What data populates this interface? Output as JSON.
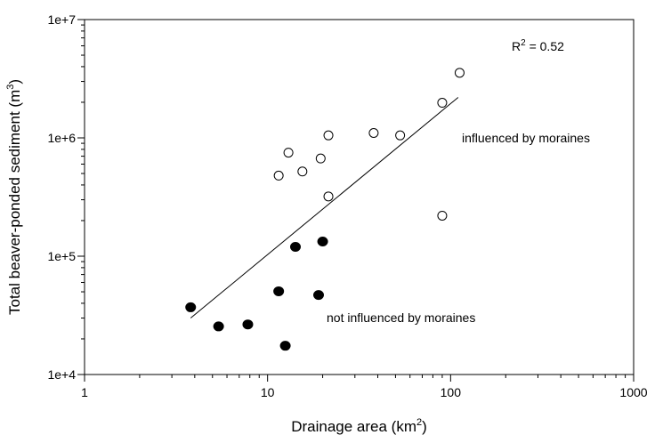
{
  "chart_data": {
    "type": "scatter",
    "title": "",
    "xlabel": "Drainage area (km",
    "xlabel_sup": "2",
    "xlabel_close": ")",
    "ylabel": "Total beaver-ponded sediment (m",
    "ylabel_sup": "3",
    "ylabel_close": ")",
    "xscale": "log",
    "yscale": "log",
    "xlim": [
      1,
      1000
    ],
    "ylim": [
      10000,
      10000000
    ],
    "xticks": [
      {
        "value": 1,
        "label": "1"
      },
      {
        "value": 10,
        "label": "10"
      },
      {
        "value": 100,
        "label": "100"
      },
      {
        "value": 1000,
        "label": "1000"
      }
    ],
    "yticks": [
      {
        "value": 10000,
        "label": "1e+4"
      },
      {
        "value": 100000,
        "label": "1e+5"
      },
      {
        "value": 1000000,
        "label": "1e+6"
      },
      {
        "value": 10000000,
        "label": "1e+7"
      }
    ],
    "grid": false,
    "series": [
      {
        "marker": "open-circle",
        "color": "#000000",
        "points": [
          {
            "x": 11.5,
            "y": 480000
          },
          {
            "x": 13.0,
            "y": 750000
          },
          {
            "x": 15.5,
            "y": 520000
          },
          {
            "x": 19.5,
            "y": 670000
          },
          {
            "x": 21.5,
            "y": 1050000
          },
          {
            "x": 21.5,
            "y": 320000
          },
          {
            "x": 38.0,
            "y": 1100000
          },
          {
            "x": 53.0,
            "y": 1050000
          },
          {
            "x": 90.0,
            "y": 1980000
          },
          {
            "x": 90.0,
            "y": 220000
          },
          {
            "x": 112.0,
            "y": 3550000
          }
        ]
      },
      {
        "marker": "filled-circle",
        "color": "#000000",
        "points": [
          {
            "x": 3.8,
            "y": 37000
          },
          {
            "x": 5.4,
            "y": 25500
          },
          {
            "x": 7.8,
            "y": 26500
          },
          {
            "x": 11.5,
            "y": 50500
          },
          {
            "x": 12.5,
            "y": 17500
          },
          {
            "x": 14.2,
            "y": 120000
          },
          {
            "x": 19.0,
            "y": 47000
          },
          {
            "x": 20.0,
            "y": 133000
          }
        ]
      }
    ],
    "trendline": {
      "type": "regression",
      "points": [
        {
          "x": 3.8,
          "y": 30000
        },
        {
          "x": 110.0,
          "y": 2200000
        }
      ]
    },
    "annotations": [
      {
        "id": "r2",
        "text": "R",
        "sup": "2",
        "text_after": " = 0.52"
      },
      {
        "id": "influenced",
        "text": "influenced by moraines"
      },
      {
        "id": "not-influenced",
        "text": "not influenced by moraines"
      }
    ]
  }
}
